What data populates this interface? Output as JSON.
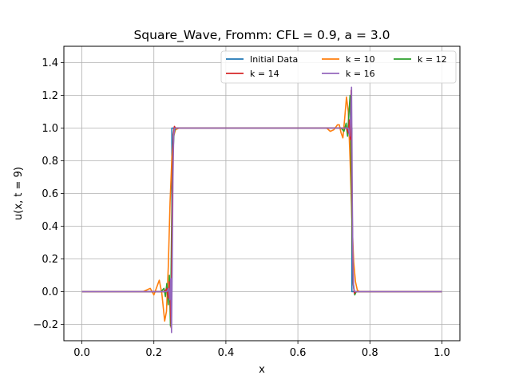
{
  "chart_data": {
    "type": "line",
    "title": "Square_Wave, Fromm: CFL = 0.9, a = 3.0",
    "xlabel": "x",
    "ylabel": "u(x, t = 9)",
    "xlim": [
      -0.05,
      1.05
    ],
    "ylim": [
      -0.3,
      1.5
    ],
    "xticks": [
      0.0,
      0.2,
      0.4,
      0.6,
      0.8,
      1.0
    ],
    "xtick_labels": [
      "0.0",
      "0.2",
      "0.4",
      "0.6",
      "0.8",
      "1.0"
    ],
    "yticks": [
      -0.2,
      0.0,
      0.2,
      0.4,
      0.6,
      0.8,
      1.0,
      1.2,
      1.4
    ],
    "ytick_labels": [
      "−0.2",
      "0.0",
      "0.2",
      "0.4",
      "0.6",
      "0.8",
      "1.0",
      "1.2",
      "1.4"
    ],
    "grid": true,
    "legend_position": "top-right",
    "series": [
      {
        "name": "Initial Data",
        "color": "#1f77b4",
        "x": [
          0.0,
          0.25,
          0.25,
          0.75,
          0.75,
          1.0
        ],
        "y": [
          0.0,
          0.0,
          1.0,
          1.0,
          0.0,
          0.0
        ]
      },
      {
        "name": "k = 10",
        "color": "#ff7f0e",
        "x": [
          0.0,
          0.17,
          0.19,
          0.2,
          0.21,
          0.215,
          0.222,
          0.23,
          0.235,
          0.24,
          0.245,
          0.25,
          0.255,
          0.26,
          0.27,
          0.28,
          0.3,
          0.68,
          0.69,
          0.7,
          0.71,
          0.715,
          0.72,
          0.725,
          0.73,
          0.735,
          0.74,
          0.745,
          0.75,
          0.755,
          0.76,
          0.765,
          0.77,
          0.78,
          1.0
        ],
        "y": [
          0.0,
          0.0,
          0.02,
          -0.02,
          0.04,
          0.07,
          -0.01,
          -0.18,
          -0.12,
          0.15,
          0.55,
          0.82,
          0.95,
          0.99,
          1.0,
          1.0,
          1.0,
          1.0,
          0.98,
          0.99,
          1.02,
          1.02,
          0.97,
          0.94,
          1.06,
          1.19,
          1.1,
          0.8,
          0.45,
          0.18,
          0.06,
          0.01,
          0.0,
          0.0,
          0.0
        ]
      },
      {
        "name": "k = 12",
        "color": "#2ca02c",
        "x": [
          0.0,
          0.22,
          0.228,
          0.232,
          0.236,
          0.24,
          0.243,
          0.246,
          0.249,
          0.252,
          0.256,
          0.26,
          0.27,
          0.7,
          0.72,
          0.728,
          0.734,
          0.738,
          0.742,
          0.745,
          0.748,
          0.751,
          0.754,
          0.758,
          0.762,
          0.78,
          1.0
        ],
        "y": [
          0.0,
          0.0,
          0.02,
          -0.03,
          0.05,
          -0.08,
          0.1,
          -0.21,
          0.35,
          0.8,
          0.97,
          1.0,
          1.0,
          1.0,
          1.0,
          0.98,
          1.03,
          0.95,
          1.1,
          1.2,
          0.75,
          0.3,
          0.05,
          -0.02,
          0.0,
          0.0,
          0.0
        ]
      },
      {
        "name": "k = 14",
        "color": "#d62728",
        "x": [
          0.0,
          0.23,
          0.236,
          0.24,
          0.243,
          0.246,
          0.248,
          0.25,
          0.252,
          0.254,
          0.257,
          0.26,
          0.27,
          0.72,
          0.735,
          0.74,
          0.743,
          0.746,
          0.748,
          0.75,
          0.752,
          0.754,
          0.757,
          0.76,
          0.78,
          1.0
        ],
        "y": [
          0.0,
          0.0,
          0.02,
          -0.04,
          0.06,
          -0.1,
          -0.22,
          0.3,
          0.75,
          0.96,
          1.01,
          1.0,
          1.0,
          1.0,
          1.0,
          0.97,
          1.05,
          0.93,
          1.23,
          0.7,
          0.25,
          0.04,
          -0.01,
          0.0,
          0.0,
          0.0
        ]
      },
      {
        "name": "k = 16",
        "color": "#9467bd",
        "x": [
          0.0,
          0.236,
          0.241,
          0.244,
          0.247,
          0.249,
          0.251,
          0.253,
          0.255,
          0.258,
          0.262,
          0.27,
          0.73,
          0.74,
          0.744,
          0.747,
          0.749,
          0.751,
          0.753,
          0.755,
          0.758,
          0.762,
          0.78,
          1.0
        ],
        "y": [
          0.0,
          0.0,
          0.02,
          -0.05,
          0.08,
          -0.25,
          0.2,
          0.7,
          0.95,
          1.0,
          1.0,
          1.0,
          1.0,
          1.0,
          0.95,
          1.08,
          1.25,
          0.6,
          0.15,
          0.02,
          0.0,
          0.0,
          0.0,
          0.0
        ]
      }
    ]
  }
}
